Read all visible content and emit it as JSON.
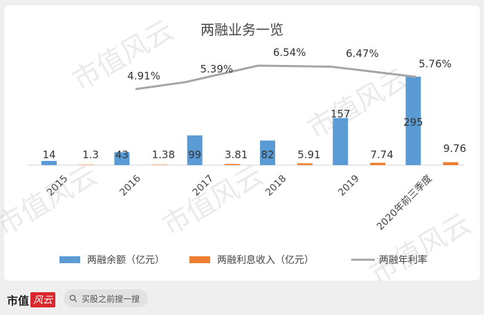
{
  "chart_data": {
    "type": "bar",
    "title": "两融业务一览",
    "categories": [
      "2015",
      "2016",
      "2017",
      "2018",
      "2019",
      "2020年前三季度"
    ],
    "series": [
      {
        "name": "两融余额（亿元）",
        "type": "bar",
        "color": "#5b9bd5",
        "values": [
          14,
          43,
          99,
          82,
          157,
          295
        ],
        "labels": [
          "14",
          "43",
          "99",
          "82",
          "157",
          "295"
        ]
      },
      {
        "name": "两融利息收入（亿元）",
        "type": "bar",
        "color": "#ed7d31",
        "values": [
          1.3,
          1.38,
          3.81,
          5.91,
          7.74,
          9.76
        ],
        "labels": [
          "1.3",
          "1.38",
          "3.81",
          "5.91",
          "7.74",
          "9.76"
        ]
      },
      {
        "name": "两融年利率",
        "type": "line",
        "color": "#a5a5a5",
        "values": [
          null,
          4.91,
          5.39,
          6.54,
          6.47,
          5.76
        ],
        "labels": [
          "",
          "4.91%",
          "5.39%",
          "6.54%",
          "6.47%",
          "5.76%"
        ]
      }
    ],
    "legend_position": "bottom",
    "grid": false
  },
  "watermark": [
    "市值风云",
    "市值风云",
    "市值风云",
    "市值风云",
    "市值风云"
  ],
  "footer": {
    "brand": "市值",
    "brand_script": "风云",
    "search_placeholder": "买股之前搜一搜"
  }
}
